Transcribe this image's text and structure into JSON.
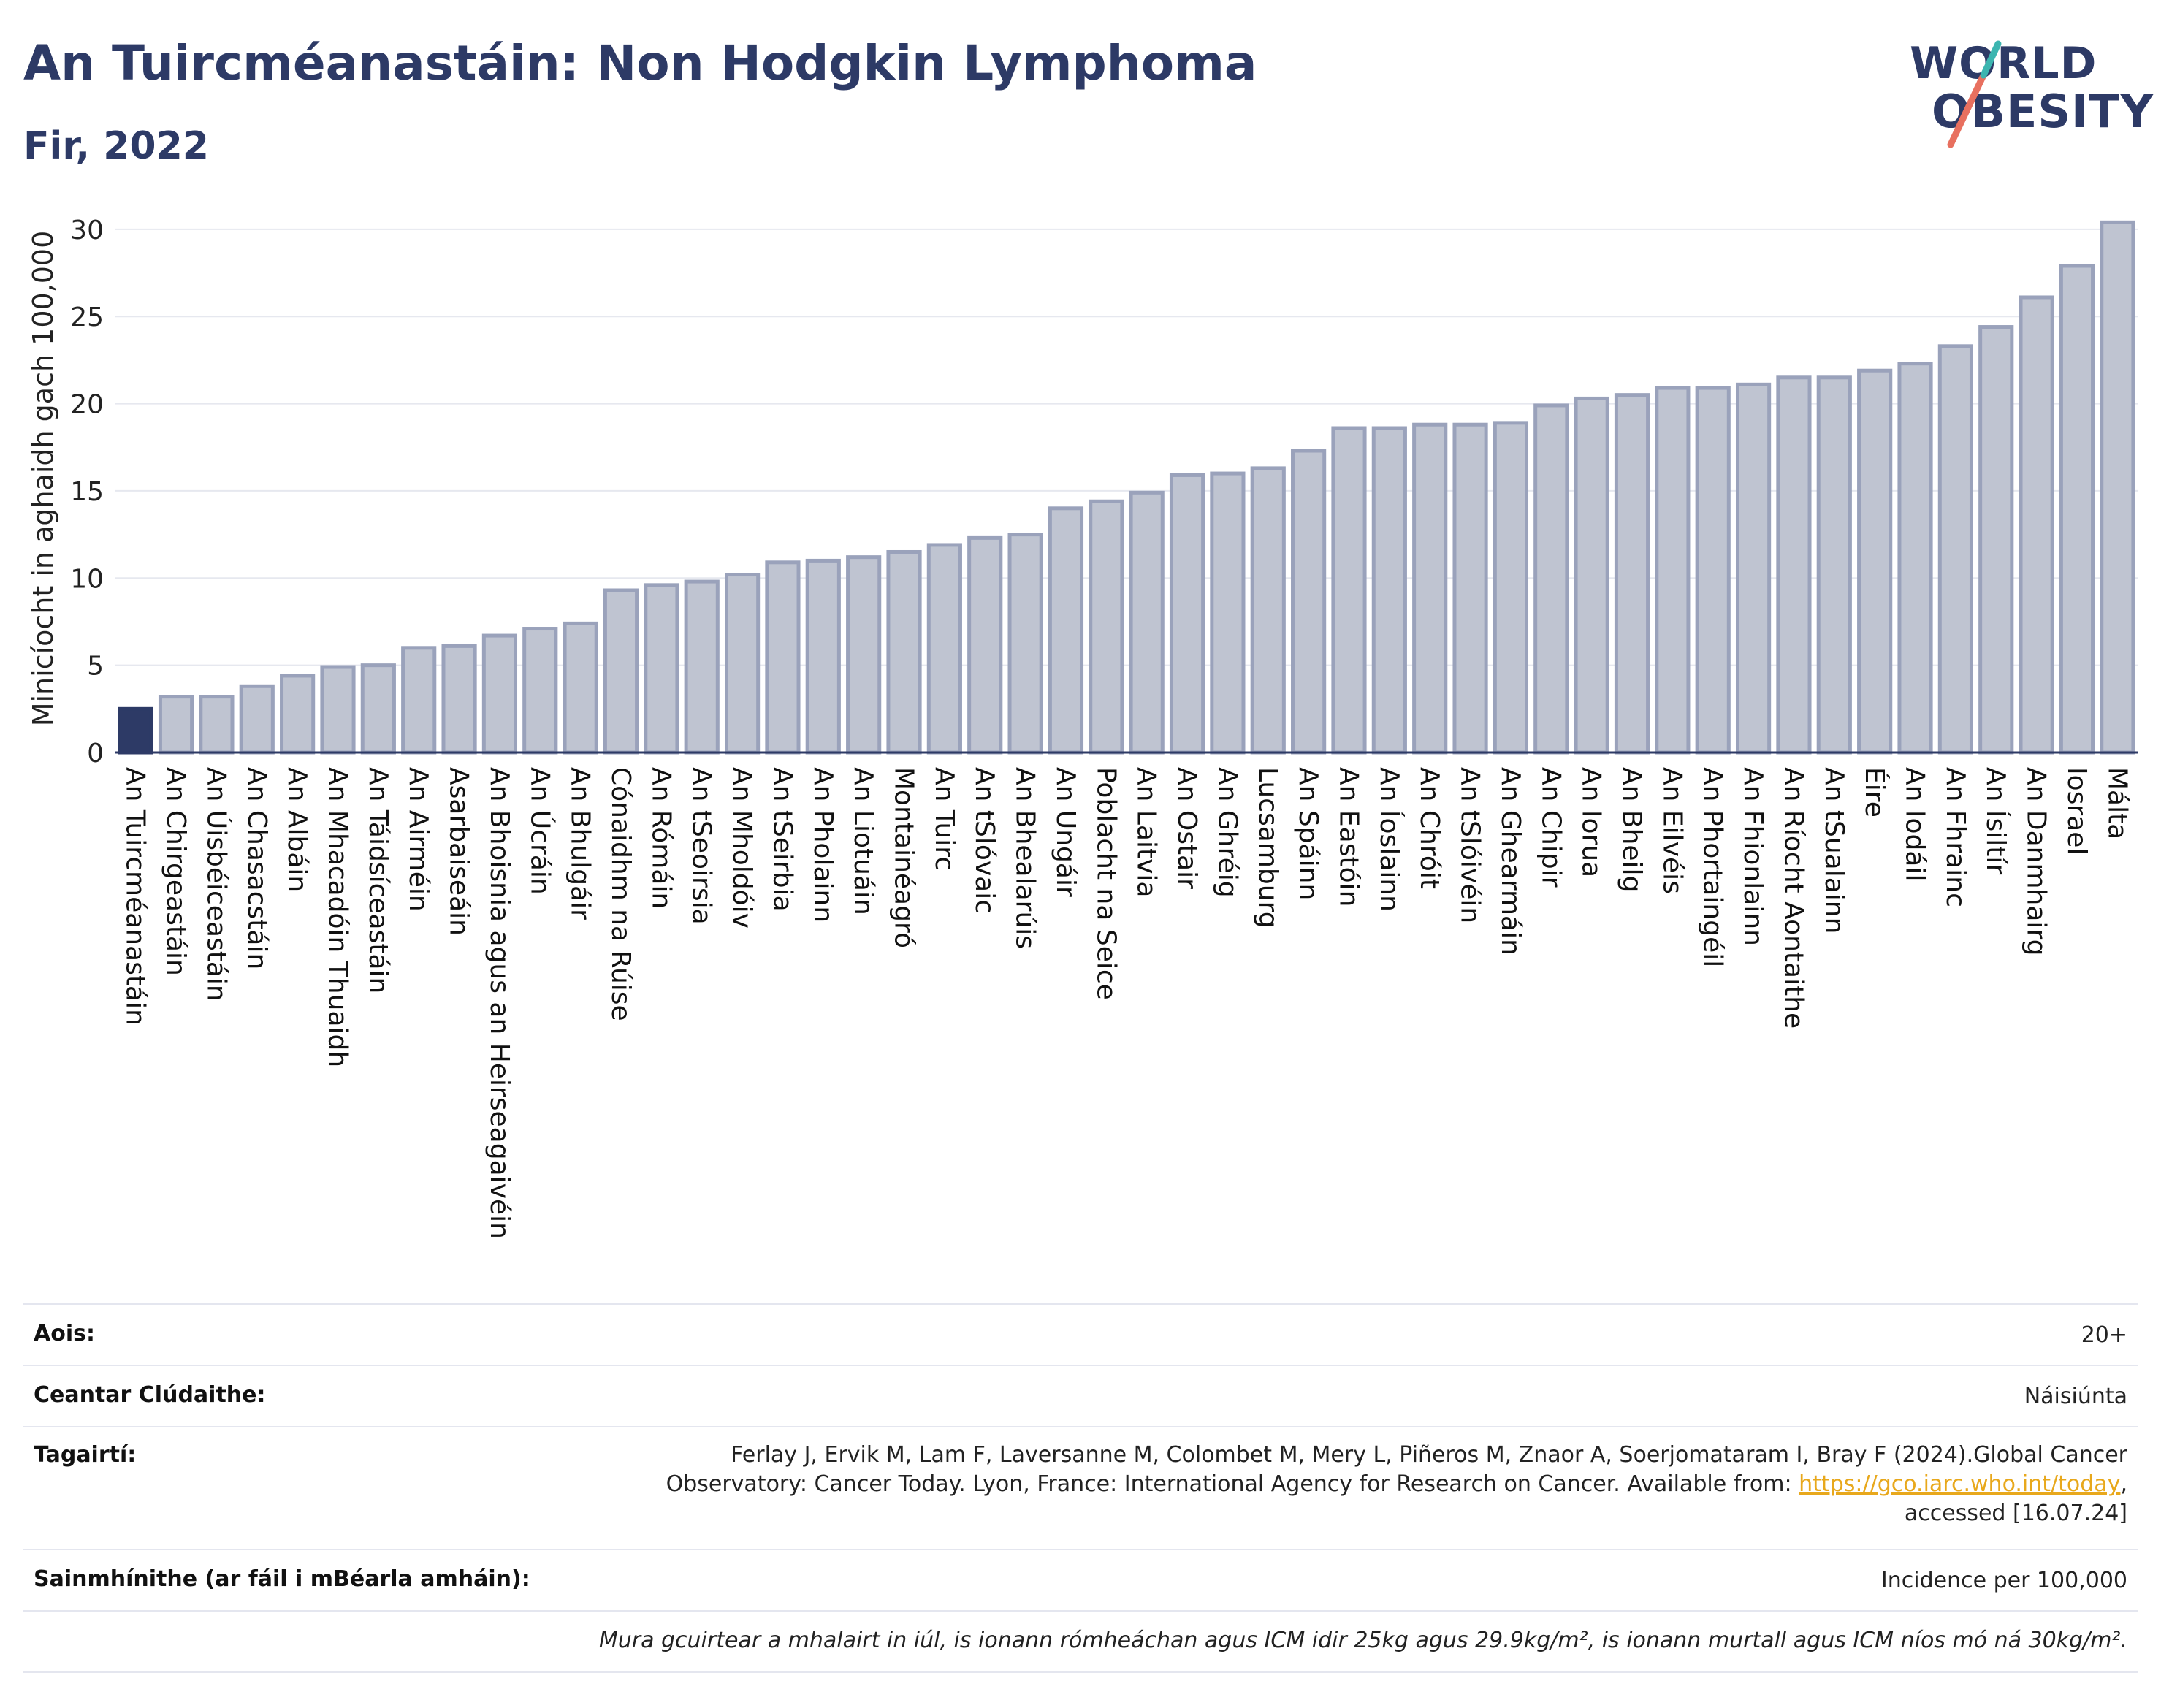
{
  "header": {
    "title": "An Tuircméanastáin: Non Hodgkin Lymphoma",
    "subtitle": "Fir, 2022"
  },
  "logo": {
    "line1": "WORLD",
    "line2": "OBESITY",
    "text": "WORLD OBESITY"
  },
  "colors": {
    "highlight": "#2d3a66",
    "bar_fill": "#bfc4d1",
    "bar_stroke": "#9aa2bb",
    "grid": "#e6e8ef",
    "axis": "#2d3a66"
  },
  "chart_data": {
    "type": "bar",
    "title": "An Tuircméanastáin: Non Hodgkin Lymphoma",
    "subtitle": "Fir, 2022",
    "xlabel": "",
    "ylabel": "Minicíocht in aghaidh gach 100,000",
    "ylim": [
      0,
      31
    ],
    "yticks": [
      0,
      5,
      10,
      15,
      20,
      25,
      30
    ],
    "grid": true,
    "highlight_category": "An Tuircméanastáin",
    "categories": [
      "An Tuircméanastáin",
      "An Chirgeastáin",
      "An Úisbéiceastáin",
      "An Chasacstáin",
      "An Albáin",
      "An Mhacadóin Thuaidh",
      "An Táidsíceastáin",
      "An Airméin",
      "Asarbaiseáin",
      "An Bhoisnia agus an Heirseagaivéin",
      "An Úcráin",
      "An Bhulgáir",
      "Cónaidhm na Rúise",
      "An Rómáin",
      "An tSeoirsia",
      "An Mholdóiv",
      "An tSeirbia",
      "An Pholainn",
      "An Liotuáin",
      "Montainéagró",
      "An Tuirc",
      "An tSlóvaic",
      "An Bhealarúis",
      "An Ungáir",
      "Poblacht na Seice",
      "An Laitvia",
      "An Ostair",
      "An Ghréig",
      "Lucsamburg",
      "An Spáinn",
      "An Eastóin",
      "An Íoslainn",
      "An Chróit",
      "An tSlóivéin",
      "An Ghearmáin",
      "An Chipir",
      "An Iorua",
      "An Bheilg",
      "An Eilvéis",
      "An Phortaingéil",
      "An Fhionlainn",
      "An Ríocht Aontaithe",
      "An tSualainn",
      "Éire",
      "An Iodáil",
      "An Fhrainc",
      "An Ísiltír",
      "An Danmhairg",
      "Iosrael",
      "Málta"
    ],
    "values": [
      2.5,
      3.2,
      3.2,
      3.8,
      4.4,
      4.9,
      5.0,
      6.0,
      6.1,
      6.7,
      7.1,
      7.4,
      9.3,
      9.6,
      9.8,
      10.2,
      10.9,
      11.0,
      11.2,
      11.5,
      11.9,
      12.3,
      12.5,
      14.0,
      14.4,
      14.9,
      15.9,
      16.0,
      16.3,
      17.3,
      18.6,
      18.6,
      18.8,
      18.8,
      18.9,
      19.9,
      20.3,
      20.5,
      20.9,
      20.9,
      21.1,
      21.5,
      21.5,
      21.9,
      22.3,
      23.3,
      24.4,
      26.1,
      27.9,
      30.4
    ]
  },
  "info": {
    "age_label": "Aois:",
    "age_value": "20+",
    "coverage_label": "Ceantar Clúdaithe:",
    "coverage_value": "Náisiúnta",
    "ref_label": "Tagairtí:",
    "ref_line1": "Ferlay J, Ervik M, Lam F, Laversanne M, Colombet M, Mery L, Piñeros M, Znaor A, Soerjomataram I, Bray F (2024).Global Cancer",
    "ref_line2": "Observatory: Cancer Today. Lyon, France: International Agency for Research on Cancer. Available from: ",
    "ref_link": "https://gco.iarc.who.int/today",
    "ref_line2_end": ",",
    "ref_line3": "accessed [16.07.24]",
    "def_label": "Sainmhínithe (ar fáil i mBéarla amháin):",
    "def_value": "Incidence per 100,000",
    "footnote": "Mura gcuirtear a mhalairt in iúl, is ionann rómheáchan agus ICM idir 25kg agus 29.9kg/m², is ionann murtall agus ICM níos mó ná 30kg/m²."
  }
}
